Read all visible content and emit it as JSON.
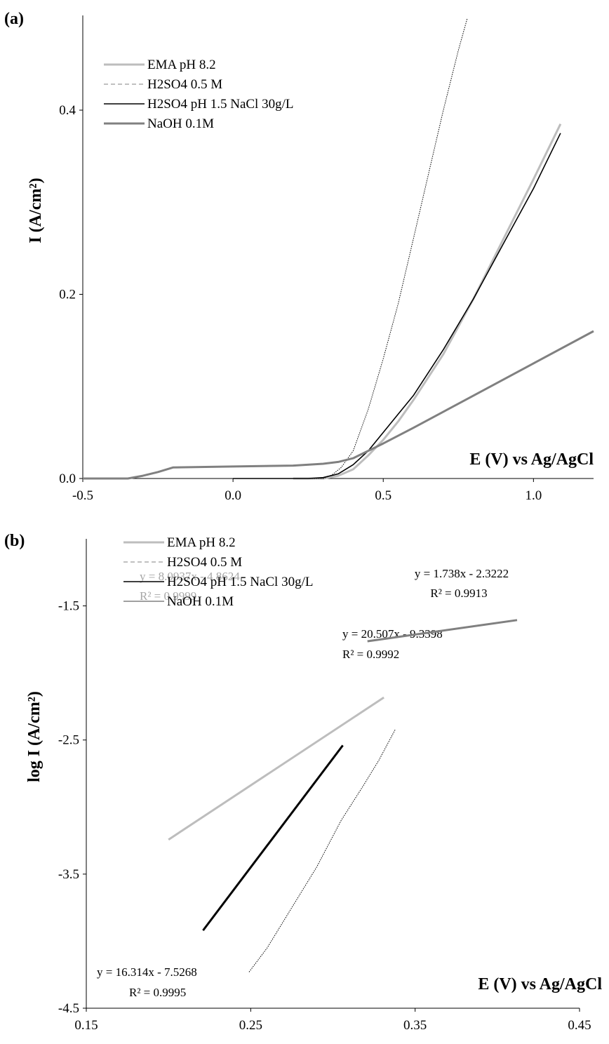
{
  "chart_data": [
    {
      "panel": "(a)",
      "type": "line",
      "xlabel": "E (V) vs Ag/AgCl",
      "ylabel": "I (A/cm²)",
      "xlim": [
        -0.5,
        1.2
      ],
      "ylim": [
        0.0,
        0.4
      ],
      "xticks": [
        "-0.5",
        "0.0",
        "0.5",
        "1.0"
      ],
      "yticks": [
        "0.0",
        "0.2",
        "0.4"
      ],
      "legend_position": "top-left",
      "series": [
        {
          "name": "EMA pH 8.2",
          "color": "#bdbdbd",
          "style": "solid-thick",
          "x": [
            0.2,
            0.3,
            0.35,
            0.4,
            0.45,
            0.5,
            0.55,
            0.6,
            0.7,
            0.8,
            0.9,
            1.0,
            1.09
          ],
          "y": [
            0.0,
            0.0,
            0.003,
            0.01,
            0.025,
            0.042,
            0.062,
            0.085,
            0.135,
            0.195,
            0.26,
            0.325,
            0.385
          ]
        },
        {
          "name": "H2SO4 0.5 M",
          "color": "#000000",
          "style": "dashed-thin",
          "x": [
            0.2,
            0.3,
            0.33,
            0.36,
            0.4,
            0.45,
            0.5,
            0.55,
            0.6,
            0.65,
            0.7,
            0.75,
            0.78
          ],
          "y": [
            0.0,
            0.0,
            0.004,
            0.012,
            0.03,
            0.075,
            0.13,
            0.19,
            0.26,
            0.33,
            0.4,
            0.465,
            0.5
          ]
        },
        {
          "name": "H2SO4 pH 1.5 NaCl 30g/L",
          "color": "#000000",
          "style": "solid",
          "x": [
            0.0,
            0.25,
            0.3,
            0.35,
            0.4,
            0.45,
            0.5,
            0.55,
            0.6,
            0.7,
            0.8,
            0.9,
            1.0,
            1.09
          ],
          "y": [
            0.0,
            0.0,
            0.001,
            0.005,
            0.015,
            0.03,
            0.05,
            0.07,
            0.09,
            0.14,
            0.195,
            0.255,
            0.315,
            0.375
          ]
        },
        {
          "name": "NaOH 0.1M",
          "color": "#808080",
          "style": "solid-thick",
          "x": [
            -0.5,
            -0.35,
            -0.3,
            -0.25,
            -0.2,
            0.0,
            0.2,
            0.3,
            0.35,
            0.4,
            0.45,
            0.5,
            0.6,
            0.8,
            1.0,
            1.2
          ],
          "y": [
            0.0,
            0.0,
            0.003,
            0.007,
            0.012,
            0.013,
            0.014,
            0.016,
            0.018,
            0.022,
            0.03,
            0.038,
            0.055,
            0.09,
            0.125,
            0.16
          ]
        }
      ]
    },
    {
      "panel": "(b)",
      "type": "line",
      "xlabel": "E (V) vs Ag/AgCl",
      "ylabel": "log I (A/cm²)",
      "xlim": [
        0.15,
        0.45
      ],
      "ylim": [
        -4.5,
        -1.0
      ],
      "xticks": [
        "0.15",
        "0.25",
        "0.35",
        "0.45"
      ],
      "yticks": [
        "-4.5",
        "-3.5",
        "-2.5",
        "-1.5"
      ],
      "legend_position": "top-left",
      "series": [
        {
          "name": "EMA pH 8.2",
          "color": "#bdbdbd",
          "style": "solid-thick",
          "x": [
            0.2,
            0.331
          ],
          "y": [
            -3.243,
            -2.183
          ],
          "fit": {
            "equation": "y = 8.0937x - 4.8624",
            "r2": "R² = 0.9999"
          }
        },
        {
          "name": "H2SO4 0.5 M",
          "color": "#000000",
          "style": "dashed-thin",
          "x": [
            0.249,
            0.26,
            0.275,
            0.29,
            0.305,
            0.318,
            0.328,
            0.338
          ],
          "y": [
            -4.23,
            -4.05,
            -3.75,
            -3.45,
            -3.1,
            -2.85,
            -2.65,
            -2.42
          ],
          "fit": {
            "equation": "y = 20.507x - 9.3398",
            "r2": "R² = 0.9992"
          }
        },
        {
          "name": "H2SO4 pH 1.5 NaCl 30g/L",
          "color": "#000000",
          "style": "solid-thick",
          "x": [
            0.221,
            0.306
          ],
          "y": [
            -3.92,
            -2.54
          ],
          "fit": {
            "equation": "y = 16.314x - 7.5268",
            "r2": "R² = 0.9995"
          }
        },
        {
          "name": "NaOH 0.1M",
          "color": "#808080",
          "style": "solid-thick",
          "x": [
            0.321,
            0.412
          ],
          "y": [
            -1.764,
            -1.606
          ],
          "fit": {
            "equation": "y = 1.738x - 2.3222",
            "r2": "R² = 0.9913"
          }
        }
      ]
    }
  ]
}
